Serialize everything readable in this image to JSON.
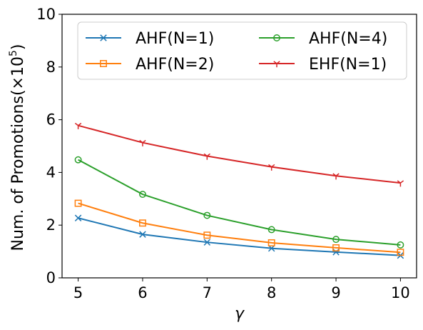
{
  "chart_data": {
    "type": "line",
    "x": [
      5,
      6,
      7,
      8,
      9,
      10
    ],
    "xlabel": "γ",
    "ylabel_main": "Num. of Promotions(×10",
    "ylabel_exp": "5",
    "ylabel_close": ")",
    "xlim": [
      4.75,
      10.25
    ],
    "ylim": [
      0,
      10
    ],
    "xticks": [
      "5",
      "6",
      "7",
      "8",
      "9",
      "10"
    ],
    "yticks": [
      "0",
      "2",
      "4",
      "6",
      "8",
      "10"
    ],
    "grid": false,
    "legend_position": "top",
    "series": [
      {
        "name": "AHF(N=1)",
        "color": "#1f77b4",
        "marker": "x",
        "values": [
          2.27,
          1.65,
          1.35,
          1.12,
          0.98,
          0.85
        ]
      },
      {
        "name": "AHF(N=2)",
        "color": "#ff7f0e",
        "marker": "square",
        "values": [
          2.83,
          2.08,
          1.62,
          1.33,
          1.14,
          0.97
        ]
      },
      {
        "name": "AHF(N=4)",
        "color": "#2ca02c",
        "marker": "circle",
        "values": [
          4.48,
          3.17,
          2.37,
          1.83,
          1.46,
          1.25
        ]
      },
      {
        "name": "EHF(N=1)",
        "color": "#d62728",
        "marker": "tri",
        "values": [
          5.78,
          5.13,
          4.62,
          4.21,
          3.87,
          3.6
        ]
      }
    ]
  }
}
